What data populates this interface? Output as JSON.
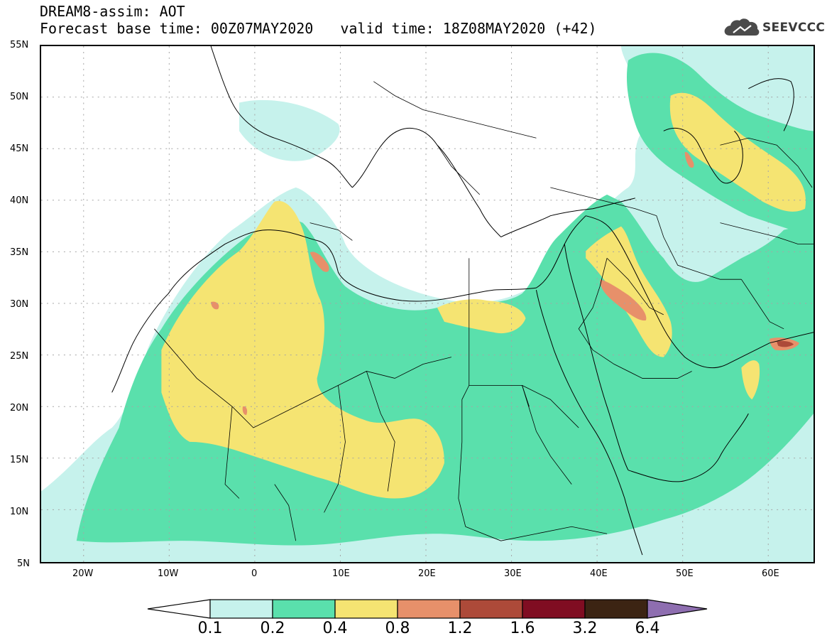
{
  "header": {
    "title": "DREAM8-assim: AOT",
    "forecast_base": "Forecast base time: 00Z07MAY2020",
    "valid_time": "valid time: 18Z08MAY2020 (+42)"
  },
  "logo": {
    "text": "SEEVCCC",
    "icon": "cloud-icon"
  },
  "axes": {
    "lat_labels": [
      "55N",
      "50N",
      "45N",
      "40N",
      "35N",
      "30N",
      "25N",
      "20N",
      "15N",
      "10N",
      "5N"
    ],
    "lon_labels": [
      "20W",
      "10W",
      "0",
      "10E",
      "20E",
      "30E",
      "40E",
      "50E",
      "60E"
    ]
  },
  "colorbar": {
    "labels": [
      "0.1",
      "0.2",
      "0.4",
      "0.8",
      "1.2",
      "1.6",
      "3.2",
      "6.4"
    ],
    "colors": [
      "#c6f2ec",
      "#5ae0ac",
      "#f5e472",
      "#e7906a",
      "#ad4a39",
      "#800d22",
      "#3c2413",
      "#8e6eb0"
    ],
    "under_color": "#ffffff"
  },
  "map_colors": {
    "land_background": "#ffffff",
    "border": "#000000",
    "grid": "#a5a5a5"
  }
}
